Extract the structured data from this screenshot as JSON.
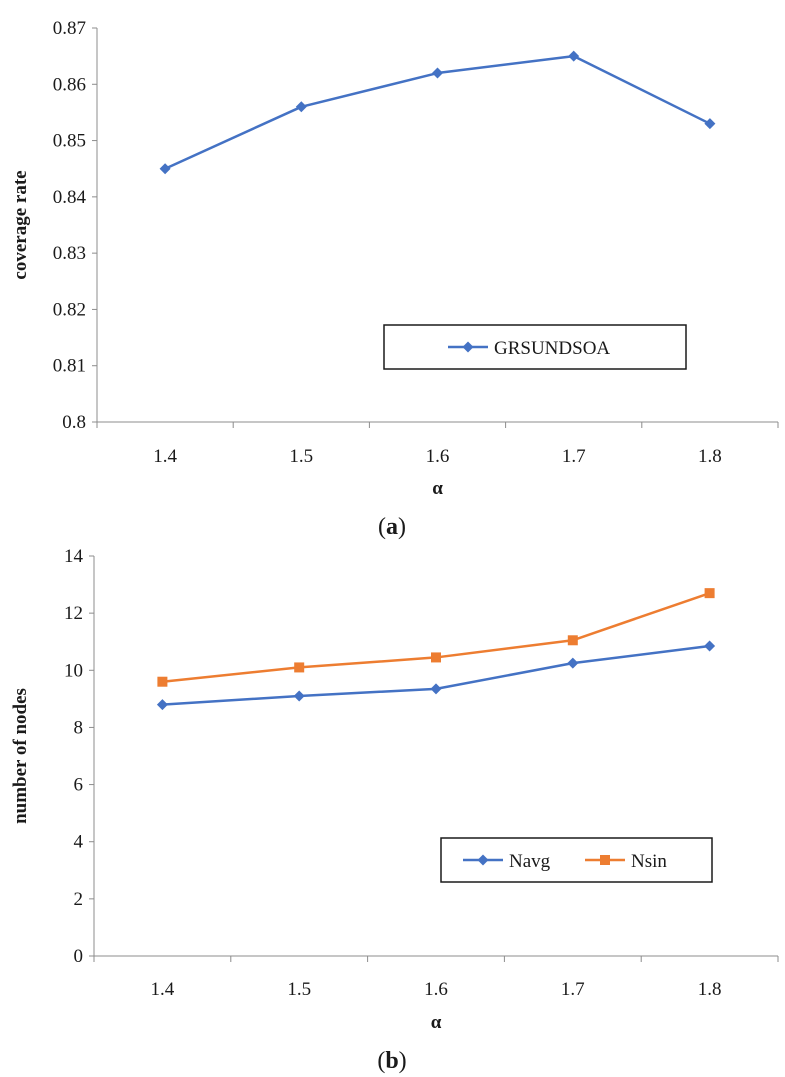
{
  "chart_data": [
    {
      "type": "line",
      "panel_label": "(a)",
      "caption_open": "(",
      "caption_letter": "a",
      "caption_close": ")",
      "xlabel": "α",
      "ylabel": "coverage rate",
      "categories": [
        "1.4",
        "1.5",
        "1.6",
        "1.7",
        "1.8"
      ],
      "ylim": [
        0.8,
        0.87
      ],
      "yticks": [
        "0.8",
        "0.81",
        "0.82",
        "0.83",
        "0.84",
        "0.85",
        "0.86",
        "0.87"
      ],
      "grid": false,
      "legend_position": "bottom-right",
      "series": [
        {
          "name": "GRSUNDSOA",
          "values": [
            0.845,
            0.856,
            0.862,
            0.865,
            0.853
          ],
          "color": "#4472C4",
          "marker": "diamond"
        }
      ]
    },
    {
      "type": "line",
      "panel_label": "(b)",
      "caption_open": "(",
      "caption_letter": "b",
      "caption_close": ")",
      "xlabel": "α",
      "ylabel": "number of nodes",
      "categories": [
        "1.4",
        "1.5",
        "1.6",
        "1.7",
        "1.8"
      ],
      "ylim": [
        0,
        14
      ],
      "yticks": [
        "0",
        "2",
        "4",
        "6",
        "8",
        "10",
        "12",
        "14"
      ],
      "grid": false,
      "legend_position": "bottom-right",
      "series": [
        {
          "name": "Navg",
          "values": [
            8.8,
            9.1,
            9.35,
            10.25,
            10.85
          ],
          "color": "#4472C4",
          "marker": "diamond"
        },
        {
          "name": "Nsin",
          "values": [
            9.6,
            10.1,
            10.45,
            11.05,
            12.7
          ],
          "color": "#ED7D31",
          "marker": "square"
        }
      ]
    }
  ]
}
